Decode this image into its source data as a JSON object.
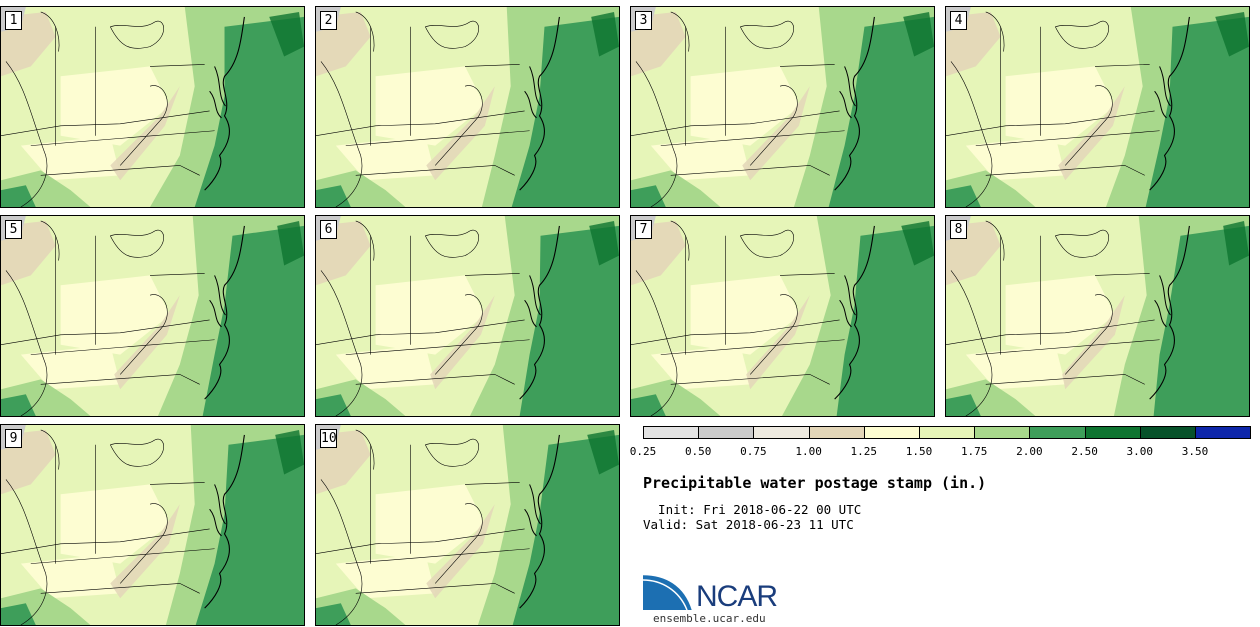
{
  "panels": [
    {
      "label": "1"
    },
    {
      "label": "2"
    },
    {
      "label": "3"
    },
    {
      "label": "4"
    },
    {
      "label": "5"
    },
    {
      "label": "6"
    },
    {
      "label": "7"
    },
    {
      "label": "8"
    },
    {
      "label": "9"
    },
    {
      "label": "10"
    }
  ],
  "colorbar": {
    "colors": [
      "#e3e3e3",
      "#cbcbcb",
      "#eeeae0",
      "#e3d6b8",
      "#fdfdd2",
      "#e6f5b8",
      "#a8d88c",
      "#3e9e5a",
      "#0e7430",
      "#07522a",
      "#0d26aa"
    ],
    "ticks": [
      "0.25",
      "0.50",
      "0.75",
      "1.00",
      "1.25",
      "1.50",
      "1.75",
      "2.00",
      "2.50",
      "3.00",
      "3.50"
    ]
  },
  "title": "Precipitable water postage stamp (in.)",
  "init": "  Init: Fri 2018-06-22 00 UTC",
  "valid": "Valid: Sat 2018-06-23 11 UTC",
  "logo": {
    "name": "NCAR",
    "url": "ensemble.ucar.edu"
  }
}
